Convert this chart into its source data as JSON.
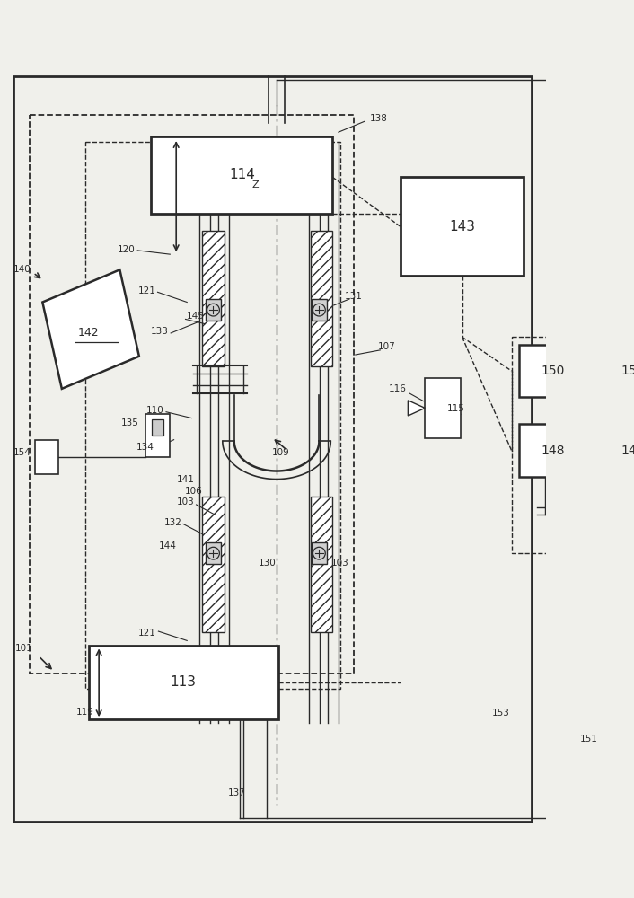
{
  "bg": "#f0f0eb",
  "lc": "#2a2a2a",
  "white": "#ffffff"
}
